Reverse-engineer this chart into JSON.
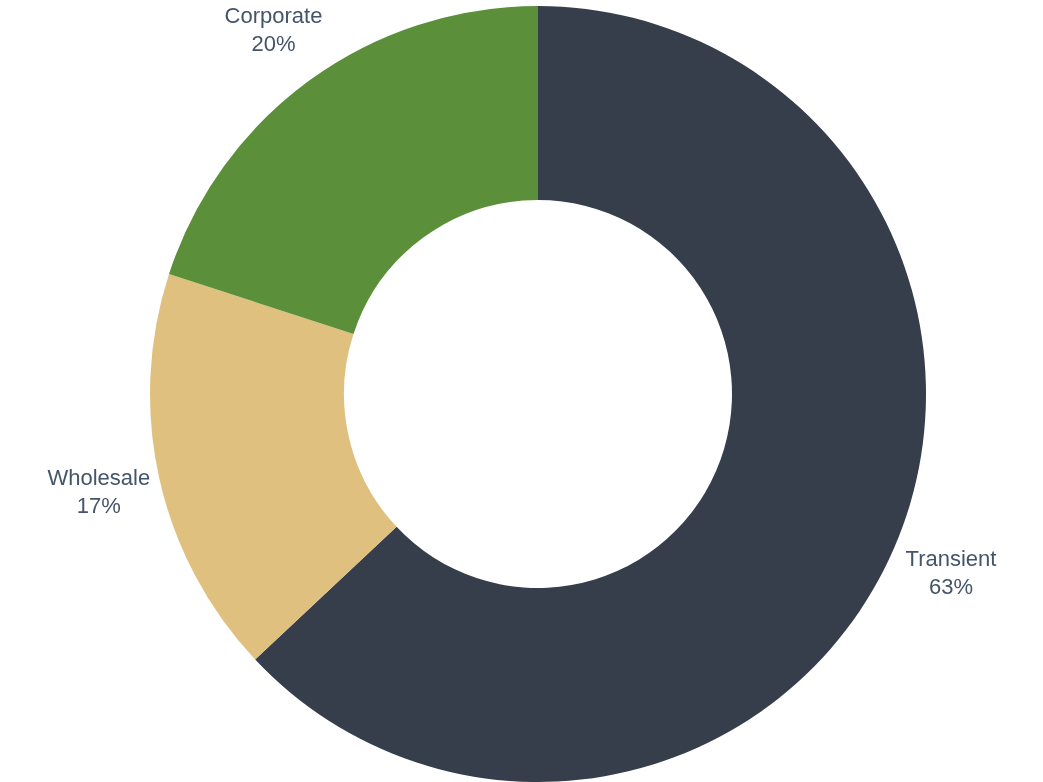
{
  "chart_data": {
    "type": "donut",
    "categories": [
      "Transient",
      "Wholesale",
      "Corporate"
    ],
    "values": [
      63,
      17,
      20
    ],
    "colors": [
      "#353e4a",
      "#e0c07f",
      "#5b8f3a"
    ],
    "value_labels": [
      "63%",
      "17%",
      "20%"
    ],
    "legend": false
  }
}
